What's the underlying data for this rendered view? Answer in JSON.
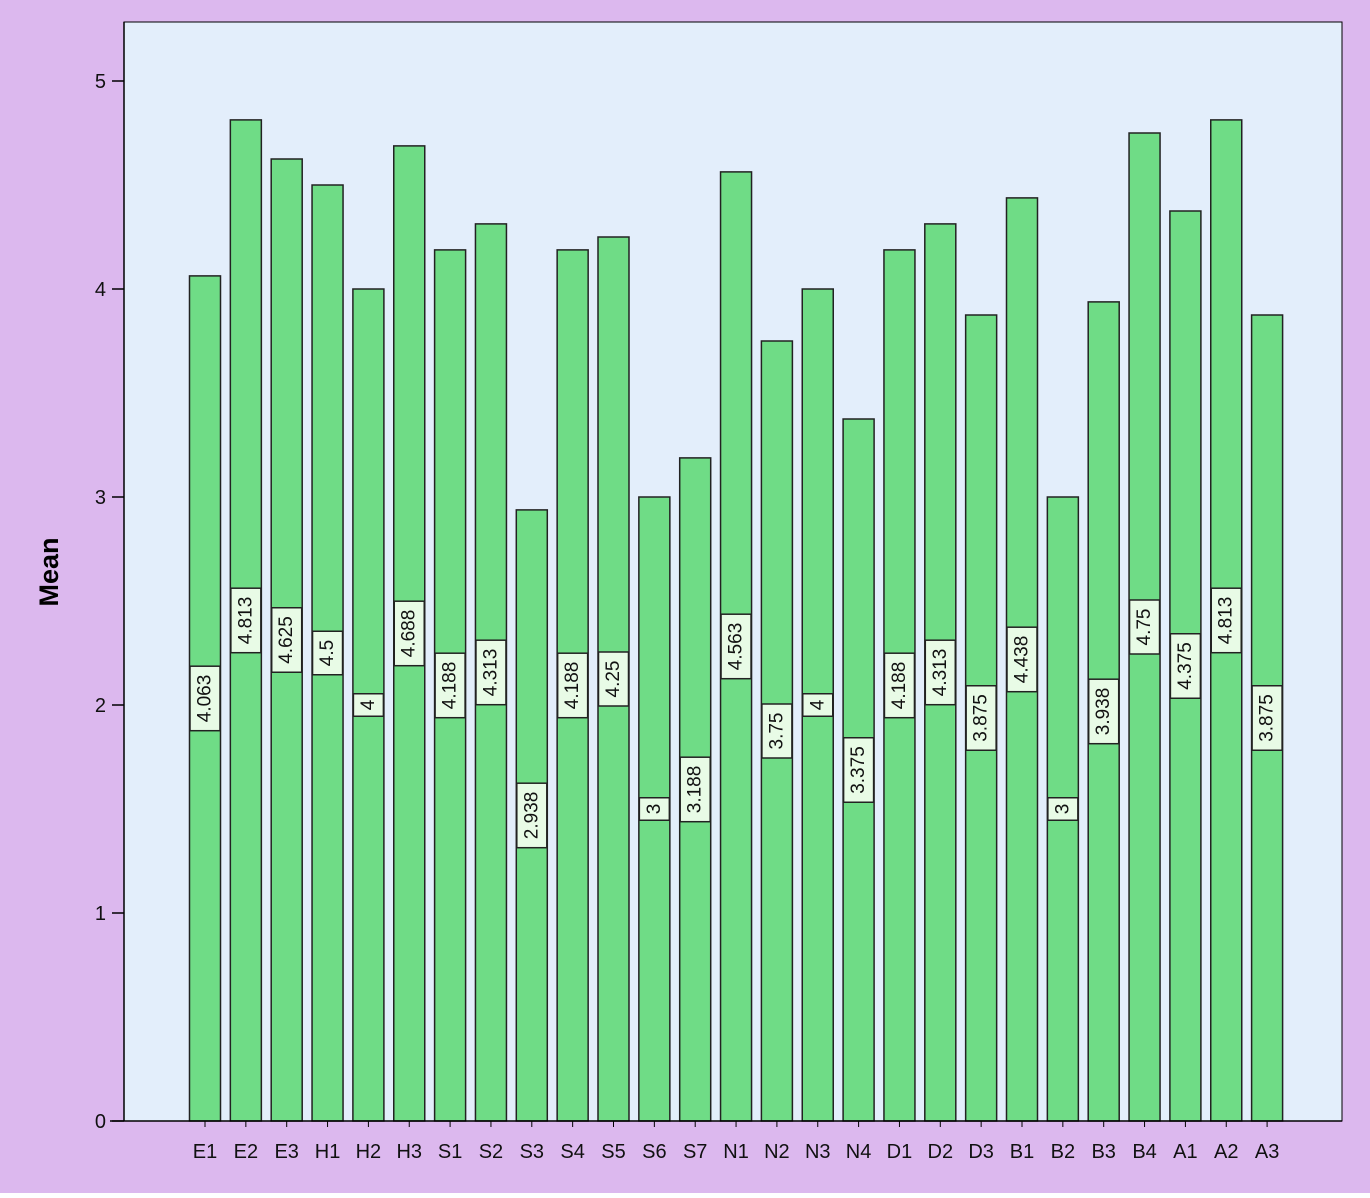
{
  "chart_data": {
    "type": "bar",
    "title": "",
    "xlabel": "",
    "ylabel": "Mean",
    "ylim": [
      0,
      5
    ],
    "yticks": [
      0,
      1,
      2,
      3,
      4,
      5
    ],
    "grid": false,
    "legend": "none",
    "categories": [
      "E1",
      "E2",
      "E3",
      "H1",
      "H2",
      "H3",
      "S1",
      "S2",
      "S3",
      "S4",
      "S5",
      "S6",
      "S7",
      "N1",
      "N2",
      "N3",
      "N4",
      "D1",
      "D2",
      "D3",
      "B1",
      "B2",
      "B3",
      "B4",
      "A1",
      "A2",
      "A3"
    ],
    "values": [
      4.063,
      4.813,
      4.625,
      4.5,
      4,
      4.688,
      4.188,
      4.313,
      2.938,
      4.188,
      4.25,
      3,
      3.188,
      4.563,
      3.75,
      4,
      3.375,
      4.188,
      4.313,
      3.875,
      4.438,
      3,
      3.938,
      4.75,
      4.375,
      4.813,
      3.875
    ],
    "data_labels": [
      "4.063",
      "4.813",
      "4.625",
      "4.5",
      "4",
      "4.688",
      "4.188",
      "4.313",
      "2.938",
      "4.188",
      "4.25",
      "3",
      "3.188",
      "4.563",
      "3.75",
      "4",
      "3.375",
      "4.188",
      "4.313",
      "3.875",
      "4.438",
      "3",
      "3.938",
      "4.75",
      "4.375",
      "4.813",
      "3.875"
    ],
    "colors": {
      "outer_background": "#dcb8ee",
      "plot_background": "#e3eefb",
      "bar_fill": "#6fdc86",
      "bar_stroke": "#222222",
      "label_box_fill": "#e8fbe6",
      "axis": "#000000"
    }
  }
}
